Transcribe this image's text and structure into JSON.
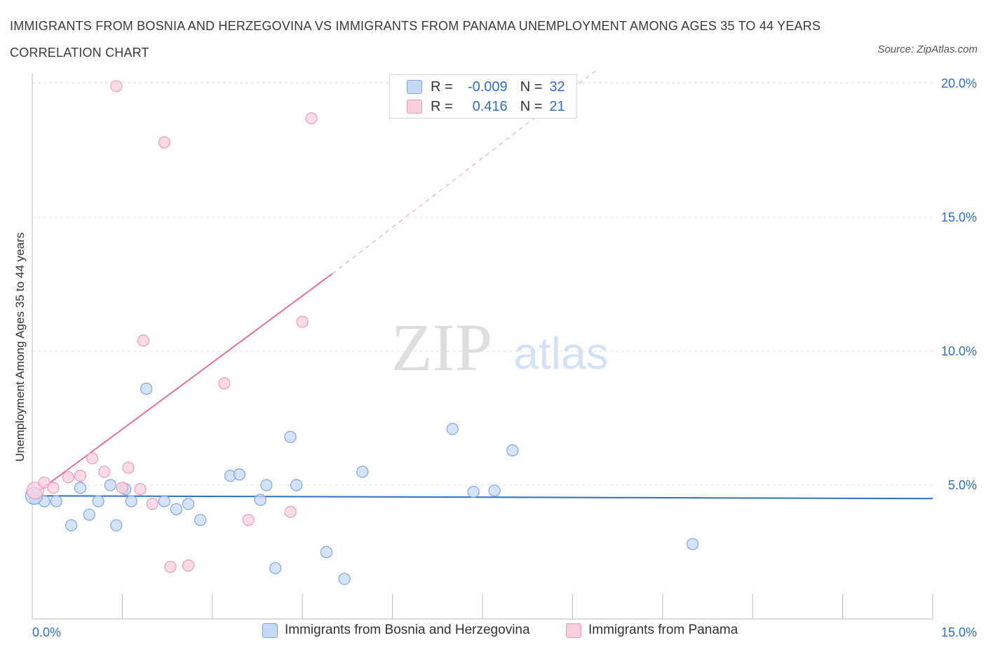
{
  "title": "IMMIGRANTS FROM BOSNIA AND HERZEGOVINA VS IMMIGRANTS FROM PANAMA UNEMPLOYMENT AMONG AGES 35 TO 44 YEARS CORRELATION CHART",
  "source": "Source: ZipAtlas.com",
  "watermark": {
    "zip": "ZIP",
    "atlas": "atlas"
  },
  "legend": {
    "r_label": "R =",
    "n_label": "N =",
    "rows": [
      {
        "r": "-0.009",
        "n": "32"
      },
      {
        "r": "0.416",
        "n": "21"
      }
    ]
  },
  "colors": {
    "blue_fill": "#c6d9f5",
    "blue_stroke": "#7ea7e0",
    "blue_line": "#2f6fc6",
    "pink_fill": "#f9cfe0",
    "pink_stroke": "#ee9bb8",
    "pink_line": "#e5719a",
    "grid": "#e3e3e3",
    "tick_label": "#2f6fc6"
  },
  "chart_data": {
    "type": "scatter",
    "xlabel": "",
    "ylabel": "Unemployment Among Ages 35 to 44 years",
    "xlim": [
      0,
      15
    ],
    "ylim": [
      0,
      20.5
    ],
    "x_tick_labels": [
      "0.0%",
      "15.0%"
    ],
    "y_ticks": [
      5,
      10,
      15,
      20
    ],
    "y_tick_labels": [
      "5.0%",
      "10.0%",
      "15.0%",
      "20.0%"
    ],
    "grid": true,
    "legend_position": "top-center",
    "series": [
      {
        "name": "Immigrants from Bosnia and Herzegovina",
        "color": "blue",
        "trend": {
          "x": [
            0,
            15
          ],
          "y": [
            4.6,
            4.5
          ],
          "dashed_until": 15
        },
        "points": [
          [
            0.05,
            4.5
          ],
          [
            0.2,
            4.4
          ],
          [
            0.4,
            4.4
          ],
          [
            0.65,
            3.5
          ],
          [
            0.8,
            4.9
          ],
          [
            0.95,
            3.9
          ],
          [
            1.1,
            4.4
          ],
          [
            1.3,
            5.0
          ],
          [
            1.4,
            3.5
          ],
          [
            1.55,
            4.85
          ],
          [
            1.65,
            4.4
          ],
          [
            1.9,
            8.6
          ],
          [
            2.2,
            4.4
          ],
          [
            2.4,
            4.1
          ],
          [
            2.6,
            4.3
          ],
          [
            2.8,
            3.7
          ],
          [
            3.3,
            5.35
          ],
          [
            3.45,
            5.4
          ],
          [
            3.8,
            4.45
          ],
          [
            3.9,
            5.0
          ],
          [
            4.05,
            1.9
          ],
          [
            4.3,
            6.8
          ],
          [
            4.4,
            5.0
          ],
          [
            4.9,
            2.5
          ],
          [
            5.2,
            1.5
          ],
          [
            5.5,
            5.5
          ],
          [
            7.0,
            7.1
          ],
          [
            7.35,
            4.75
          ],
          [
            7.7,
            4.8
          ],
          [
            8.0,
            6.3
          ],
          [
            11.0,
            2.8
          ],
          [
            0.03,
            4.6
          ]
        ]
      },
      {
        "name": "Immigrants from Panama",
        "color": "pink",
        "trend": {
          "x": [
            0,
            5.0
          ],
          "y": [
            4.6,
            12.9
          ],
          "dashed_to": [
            9.4,
            20.5
          ]
        },
        "points": [
          [
            0.05,
            4.8
          ],
          [
            0.2,
            5.1
          ],
          [
            0.35,
            4.9
          ],
          [
            0.6,
            5.3
          ],
          [
            0.8,
            5.35
          ],
          [
            1.0,
            6.0
          ],
          [
            1.2,
            5.5
          ],
          [
            1.5,
            4.9
          ],
          [
            1.6,
            5.65
          ],
          [
            1.8,
            4.85
          ],
          [
            2.0,
            4.3
          ],
          [
            2.3,
            1.95
          ],
          [
            2.6,
            2.0
          ],
          [
            1.85,
            10.4
          ],
          [
            1.4,
            19.9
          ],
          [
            2.2,
            17.8
          ],
          [
            3.2,
            8.8
          ],
          [
            3.6,
            3.7
          ],
          [
            4.3,
            4.0
          ],
          [
            4.5,
            11.1
          ],
          [
            4.65,
            18.7
          ]
        ]
      }
    ]
  },
  "bottom_legend": [
    {
      "label": "Immigrants from Bosnia and Herzegovina"
    },
    {
      "label": "Immigrants from Panama"
    }
  ]
}
